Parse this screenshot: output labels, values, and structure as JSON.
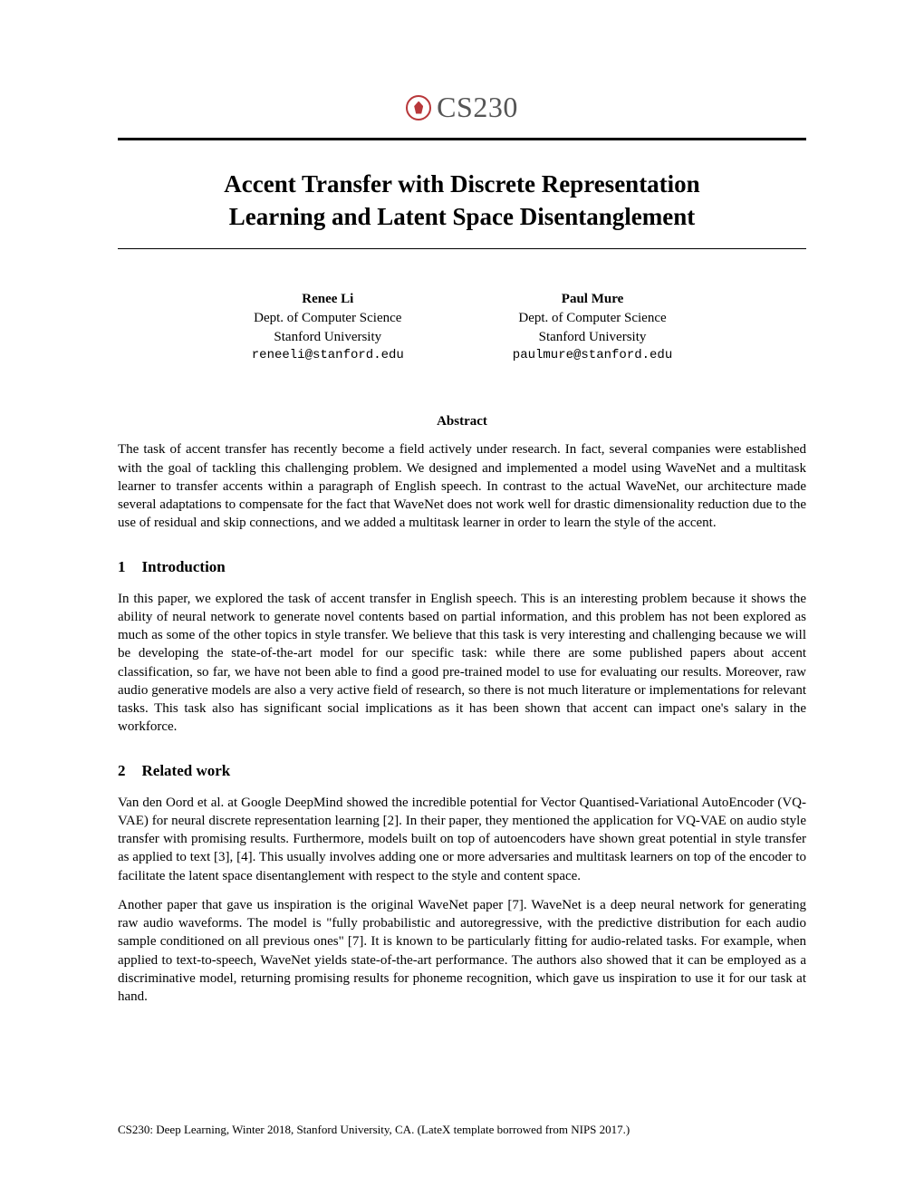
{
  "header": {
    "course_label": "CS230"
  },
  "title": {
    "line1": "Accent Transfer with Discrete Representation",
    "line2": "Learning and Latent Space Disentanglement"
  },
  "authors": [
    {
      "name": "Renee Li",
      "dept": "Dept. of Computer Science",
      "university": "Stanford University",
      "email": "reneeli@stanford.edu"
    },
    {
      "name": "Paul Mure",
      "dept": "Dept. of Computer Science",
      "university": "Stanford University",
      "email": "paulmure@stanford.edu"
    }
  ],
  "abstract": {
    "heading": "Abstract",
    "text": "The task of accent transfer has recently become a field actively under research. In fact, several companies were established with the goal of tackling this challenging problem. We designed and implemented a model using WaveNet and a multitask learner to transfer accents within a paragraph of English speech. In contrast to the actual WaveNet, our architecture made several adaptations to compensate for the fact that WaveNet does not work well for drastic dimensionality reduction due to the use of residual and skip connections, and we added a multitask learner in order to learn the style of the accent."
  },
  "sections": [
    {
      "number": "1",
      "title": "Introduction",
      "paragraphs": [
        "In this paper, we explored the task of accent transfer in English speech. This is an interesting problem because it shows the ability of neural network to generate novel contents based on partial information, and this problem has not been explored as much as some of the other topics in style transfer. We believe that this task is very interesting and challenging because we will be developing the state-of-the-art model for our specific task: while there are some published papers about accent classification, so far, we have not been able to find a good pre-trained model to use for evaluating our results. Moreover, raw audio generative models are also a very active field of research, so there is not much literature or implementations for relevant tasks. This task also has significant social implications as it has been shown that accent can impact one's salary in the workforce."
      ]
    },
    {
      "number": "2",
      "title": "Related work",
      "paragraphs": [
        "Van den Oord et al. at Google DeepMind showed the incredible potential for Vector Quantised-Variational AutoEncoder (VQ-VAE) for neural discrete representation learning [2]. In their paper, they mentioned the application for VQ-VAE on audio style transfer with promising results. Furthermore, models built on top of autoencoders have shown great potential in style transfer as applied to text [3], [4]. This usually involves adding one or more adversaries and multitask learners on top of the encoder to facilitate the latent space disentanglement with respect to the style and content space.",
        "Another paper that gave us inspiration is the original WaveNet paper [7]. WaveNet is a deep neural network for generating raw audio waveforms. The model is \"fully probabilistic and autoregressive, with the predictive distribution for each audio sample conditioned on all previous ones\" [7]. It is known to be particularly fitting for audio-related tasks. For example, when applied to text-to-speech, WaveNet yields state-of-the-art performance. The authors also showed that it can be employed as a discriminative model, returning promising results for phoneme recognition, which gave us inspiration to use it for our task at hand."
      ]
    }
  ],
  "footer": "CS230: Deep Learning, Winter 2018, Stanford University, CA. (LateX template borrowed from NIPS 2017.)"
}
